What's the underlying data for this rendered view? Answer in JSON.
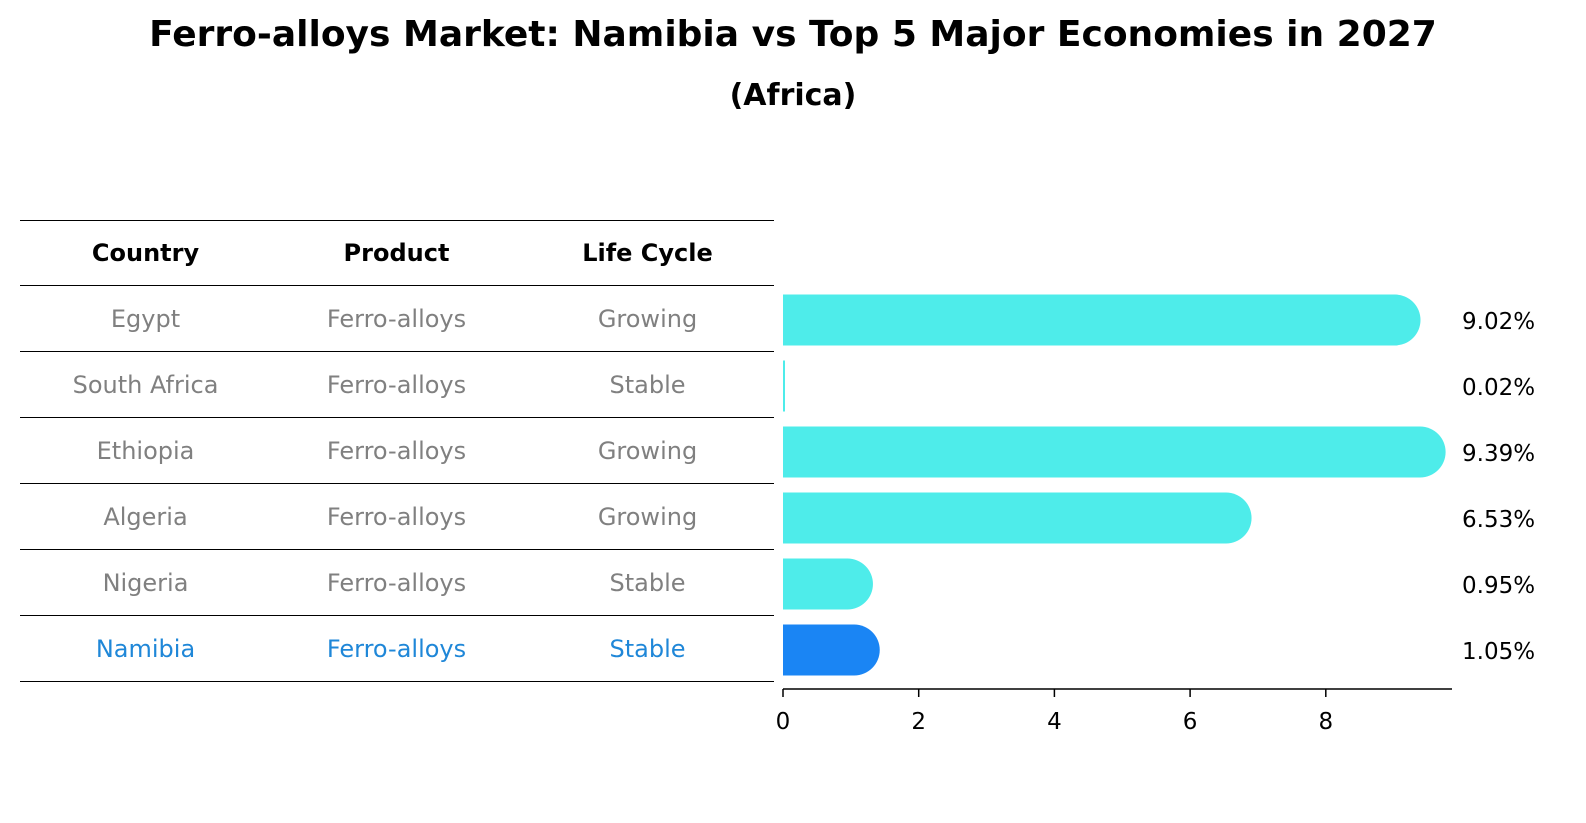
{
  "title": "Ferro-alloys Market: Namibia vs Top 5 Major Economies in 2027",
  "subtitle": "(Africa)",
  "table": {
    "headers": [
      "Country",
      "Product",
      "Life Cycle"
    ],
    "rows": [
      {
        "country": "Egypt",
        "product": "Ferro-alloys",
        "life_cycle": "Growing"
      },
      {
        "country": "South Africa",
        "product": "Ferro-alloys",
        "life_cycle": "Stable"
      },
      {
        "country": "Ethiopia",
        "product": "Ferro-alloys",
        "life_cycle": "Growing"
      },
      {
        "country": "Algeria",
        "product": "Ferro-alloys",
        "life_cycle": "Growing"
      },
      {
        "country": "Nigeria",
        "product": "Ferro-alloys",
        "life_cycle": "Stable"
      },
      {
        "country": "Namibia",
        "product": "Ferro-alloys",
        "life_cycle": "Stable"
      }
    ]
  },
  "chart_data": {
    "type": "bar",
    "orientation": "horizontal",
    "categories": [
      "Egypt",
      "South Africa",
      "Ethiopia",
      "Algeria",
      "Nigeria",
      "Namibia"
    ],
    "values": [
      9.02,
      0.02,
      9.39,
      6.53,
      0.95,
      1.05
    ],
    "value_labels": [
      "9.02%",
      "0.02%",
      "9.39%",
      "6.53%",
      "0.95%",
      "1.05%"
    ],
    "highlight": "Namibia",
    "xlim": [
      0,
      9.86
    ],
    "xticks": [
      0,
      2,
      4,
      6,
      8
    ],
    "grid": false,
    "colors": {
      "default": "#4eecea",
      "highlight": "#1a85f4"
    }
  }
}
